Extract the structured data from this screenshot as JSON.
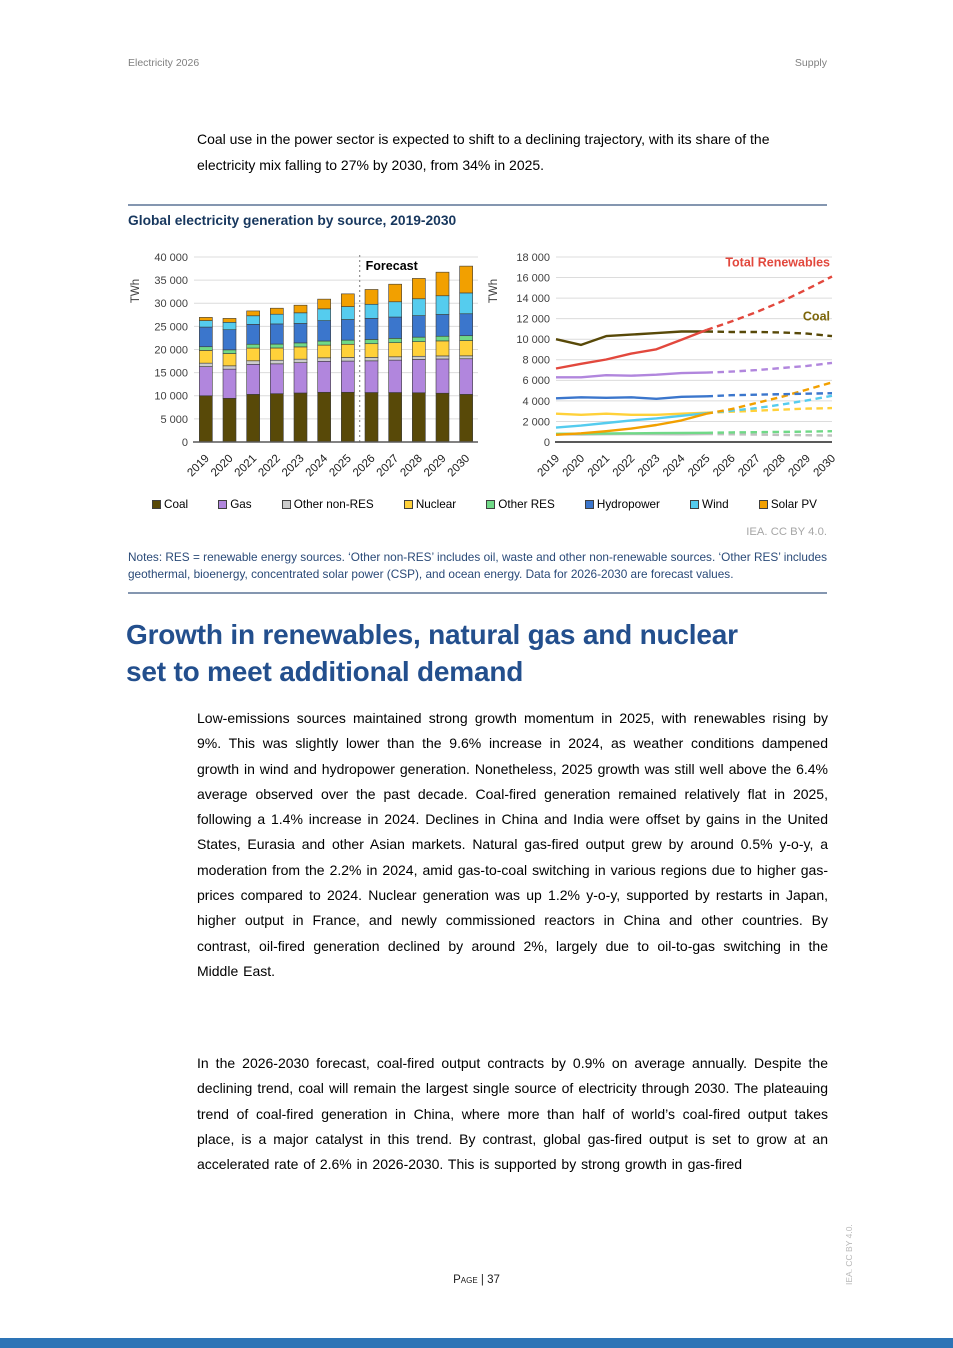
{
  "page": {
    "header": {
      "left": "Electricity 2026",
      "right": "Supply"
    },
    "intro": "Coal use in the power sector is expected to shift to a declining trajectory, with its share of the electricity mix falling to 27% by 2030, from 34% in 2025.",
    "section_heading": "Growth in renewables, natural gas and nuclear set to meet additional demand",
    "paragraphs": [
      "Low-emissions sources maintained strong growth momentum in 2025, with renewables rising by 9%. This was slightly lower than the 9.6% increase in 2024, as weather conditions dampened growth in wind and hydropower generation. Nonetheless, 2025 growth was still well above the 6.4% average observed over the past decade. Coal-fired generation remained relatively flat in 2025, following a 1.4% increase in 2024. Declines in China and India were offset by gains in the United States, Eurasia and other Asian markets. Natural gas-fired output grew by around 0.5% y-o-y, a moderation from the 2.2% in 2024, amid gas-to-coal switching in various regions due to higher gas-prices compared to 2024. Nuclear generation was up 1.2% y-o-y, supported by restarts in Japan, higher output in France, and newly commissioned reactors in China and other countries. By contrast, oil-fired generation declined by around 2%, largely due to oil-to-gas switching in the Middle East.",
      "In the 2026-2030 forecast, coal-fired output contracts by 0.9% on average annually. Despite the declining trend, coal will remain the largest single source of electricity through 2030. The plateauing trend of coal-fired generation in China, where more than half of world’s coal-fired output takes place, is a major catalyst in this trend. By contrast, global gas-fired output is set to grow at an accelerated rate of 2.6% in 2026-2030. This is supported by strong growth in gas-fired"
    ],
    "footer": "Page | 37",
    "side_attribution": "IEA. CC BY 4.0."
  },
  "figure": {
    "title": "Global electricity generation by source, 2019-2030",
    "attribution": "IEA. CC BY 4.0.",
    "notes": "Notes: RES = renewable energy sources. ‘Other non-RES’ includes oil, waste and other non-renewable sources. ‘Other RES’ includes geothermal, bioenergy, concentrated solar power (CSP), and ocean energy. Data for 2026-2030 are forecast values.",
    "legend": [
      {
        "label": "Coal",
        "color": "#584908"
      },
      {
        "label": "Gas",
        "color": "#b186dd"
      },
      {
        "label": "Other non-RES",
        "color": "#cccccc"
      },
      {
        "label": "Nuclear",
        "color": "#ffd13a"
      },
      {
        "label": "Other RES",
        "color": "#70d987"
      },
      {
        "label": "Hydropower",
        "color": "#3b76cc"
      },
      {
        "label": "Wind",
        "color": "#55ccee"
      },
      {
        "label": "Solar PV",
        "color": "#f2a000"
      }
    ]
  },
  "chart_data": [
    {
      "type": "bar",
      "stacked": true,
      "title": "Global electricity generation by source, stacked bars",
      "ylabel": "TWh",
      "ylim": [
        0,
        40000
      ],
      "ytick_step": 5000,
      "grid": true,
      "forecast_label": "Forecast",
      "forecast_boundary_index": 7,
      "categories": [
        "2019",
        "2020",
        "2021",
        "2022",
        "2023",
        "2024",
        "2025",
        "2026",
        "2027",
        "2028",
        "2029",
        "2030"
      ],
      "series": [
        {
          "name": "Coal",
          "color": "#584908",
          "values": [
            10000,
            9450,
            10300,
            10450,
            10600,
            10750,
            10750,
            10700,
            10700,
            10650,
            10550,
            10300
          ]
        },
        {
          "name": "Gas",
          "color": "#b186dd",
          "values": [
            6300,
            6300,
            6500,
            6450,
            6550,
            6700,
            6750,
            6850,
            7000,
            7200,
            7400,
            7700
          ]
        },
        {
          "name": "Other non-RES",
          "color": "#cccccc",
          "values": [
            750,
            720,
            760,
            780,
            760,
            750,
            780,
            750,
            720,
            690,
            660,
            630
          ]
        },
        {
          "name": "Nuclear",
          "color": "#ffd13a",
          "values": [
            2750,
            2650,
            2750,
            2650,
            2650,
            2750,
            2850,
            2950,
            3050,
            3150,
            3250,
            3300
          ]
        },
        {
          "name": "Other RES",
          "color": "#70d987",
          "values": [
            800,
            810,
            830,
            850,
            870,
            890,
            900,
            930,
            950,
            980,
            1010,
            1050
          ]
        },
        {
          "name": "Hydropower",
          "color": "#3b76cc",
          "values": [
            4250,
            4350,
            4300,
            4350,
            4200,
            4400,
            4450,
            4550,
            4600,
            4650,
            4700,
            4750
          ]
        },
        {
          "name": "Wind",
          "color": "#55ccee",
          "values": [
            1400,
            1600,
            1850,
            2100,
            2300,
            2550,
            2800,
            3050,
            3300,
            3650,
            4050,
            4500
          ]
        },
        {
          "name": "Solar PV",
          "color": "#f2a000",
          "values": [
            700,
            850,
            1050,
            1300,
            1650,
            2100,
            2750,
            3200,
            3800,
            4400,
            5100,
            5800
          ]
        }
      ]
    },
    {
      "type": "line",
      "title": "Global electricity generation by source, lines with forecast dashed",
      "ylabel": "TWh",
      "ylim": [
        0,
        18000
      ],
      "ytick_step": 2000,
      "grid": true,
      "solid_until_index": 6,
      "categories": [
        "2019",
        "2020",
        "2021",
        "2022",
        "2023",
        "2024",
        "2025",
        "2026",
        "2027",
        "2028",
        "2029",
        "2030"
      ],
      "series": [
        {
          "name": "Other non-RES",
          "color": "#c0c0c0",
          "values": [
            750,
            720,
            760,
            780,
            760,
            750,
            780,
            750,
            720,
            690,
            660,
            630
          ]
        },
        {
          "name": "Other RES",
          "color": "#70d987",
          "values": [
            800,
            810,
            830,
            850,
            870,
            890,
            900,
            930,
            950,
            980,
            1010,
            1050
          ]
        },
        {
          "name": "Nuclear",
          "color": "#ffd13a",
          "values": [
            2750,
            2650,
            2750,
            2650,
            2650,
            2750,
            2850,
            2950,
            3050,
            3150,
            3250,
            3300
          ]
        },
        {
          "name": "Wind",
          "color": "#55ccee",
          "values": [
            1400,
            1600,
            1850,
            2100,
            2300,
            2550,
            2800,
            3050,
            3300,
            3650,
            4050,
            4500
          ]
        },
        {
          "name": "Solar PV",
          "color": "#f2a000",
          "values": [
            700,
            850,
            1050,
            1300,
            1650,
            2100,
            2750,
            3200,
            3800,
            4400,
            5100,
            5800
          ]
        },
        {
          "name": "Hydropower",
          "color": "#3b76cc",
          "values": [
            4250,
            4350,
            4300,
            4350,
            4200,
            4400,
            4450,
            4550,
            4600,
            4650,
            4700,
            4750
          ]
        },
        {
          "name": "Gas",
          "color": "#b186dd",
          "values": [
            6300,
            6300,
            6500,
            6450,
            6550,
            6700,
            6750,
            6850,
            7000,
            7200,
            7400,
            7700
          ]
        },
        {
          "name": "Coal",
          "color": "#584908",
          "values": [
            10000,
            9450,
            10300,
            10450,
            10600,
            10750,
            10750,
            10700,
            10700,
            10650,
            10550,
            10300
          ]
        },
        {
          "name": "Total Renewables",
          "color": "#e2483d",
          "values": [
            7150,
            7610,
            8030,
            8600,
            9020,
            9940,
            10900,
            11730,
            12650,
            13680,
            14860,
            16100
          ]
        }
      ],
      "labels": [
        {
          "text": "Total Renewables",
          "color": "#e2483d",
          "value": 17100
        },
        {
          "text": "Coal",
          "color": "#7d660a",
          "value": 11800
        }
      ]
    }
  ]
}
